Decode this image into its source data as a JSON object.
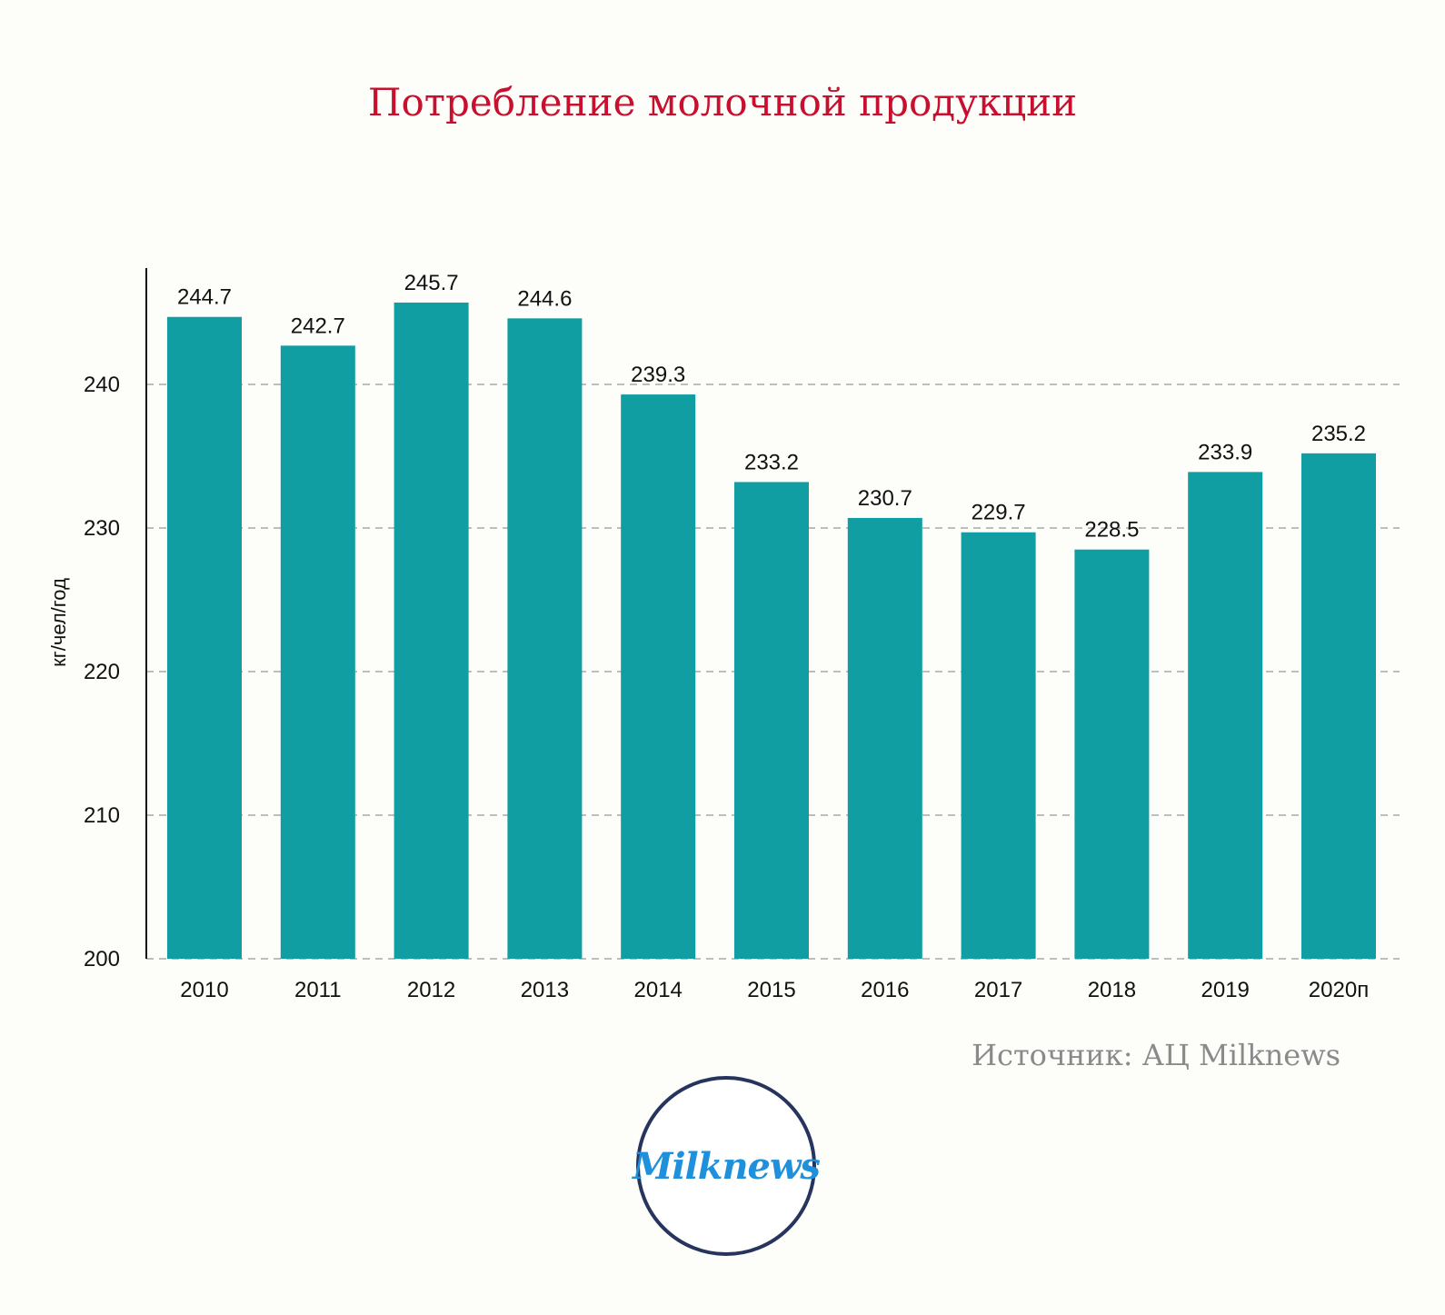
{
  "chart_data": {
    "type": "bar",
    "title": "Потребление молочной продукции",
    "ylabel": "кг/чел/год",
    "xlabel": "",
    "categories": [
      "2010",
      "2011",
      "2012",
      "2013",
      "2014",
      "2015",
      "2016",
      "2017",
      "2018",
      "2019",
      "2020п"
    ],
    "values": [
      244.7,
      242.7,
      245.7,
      244.6,
      239.3,
      233.2,
      230.7,
      229.7,
      228.5,
      233.9,
      235.2
    ],
    "data_labels": [
      "244.7",
      "242.7",
      "245.7",
      "244.6",
      "239.3",
      "233.2",
      "230.7",
      "229.7",
      "228.5",
      "233.9",
      "235.2"
    ],
    "yticks": [
      200,
      210,
      220,
      230,
      240
    ],
    "ylim": [
      200,
      248.2
    ],
    "grid": true,
    "legend": "none",
    "bar_color": "#109ea3"
  },
  "source": "Источник: АЦ Milknews",
  "logo": {
    "text": "Milknews",
    "border_color": "#27355e",
    "text_color": "#1e90dc"
  },
  "colors": {
    "title": "#c8102e",
    "source": "#8a8a8a",
    "background": "#fdfdfa"
  }
}
